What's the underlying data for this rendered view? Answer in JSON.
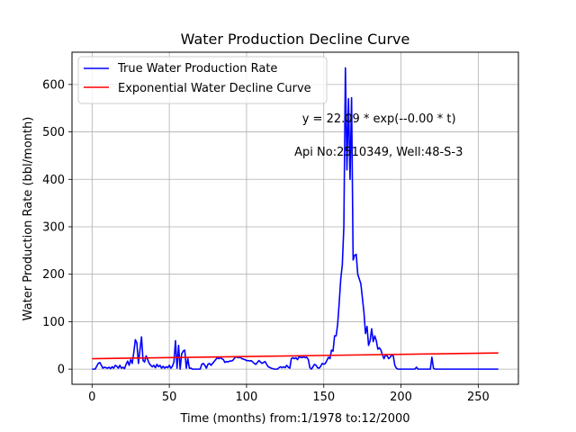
{
  "chart_data": {
    "type": "line",
    "title": "Water Production Decline Curve",
    "xlabel": "Time (months) from:1/1978 to:12/2000",
    "ylabel": "Water Production Rate (bbl/month)",
    "xlim": [
      -13,
      276
    ],
    "ylim": [
      -32,
      668
    ],
    "xticks": [
      0,
      50,
      100,
      150,
      200,
      250
    ],
    "yticks": [
      0,
      100,
      200,
      300,
      400,
      500,
      600
    ],
    "grid": true,
    "legend_position": "top-left",
    "annotations": [
      {
        "text": "y = 22.09 * exp(--0.00 * t)",
        "x": 136,
        "y": 520
      },
      {
        "text": "Api No:2510349, Well:48-S-3",
        "x": 131,
        "y": 450
      }
    ],
    "series": [
      {
        "name": "True Water Production Rate",
        "color": "#0000ff",
        "points": [
          [
            0,
            0
          ],
          [
            2,
            0
          ],
          [
            4,
            12
          ],
          [
            5,
            14
          ],
          [
            6,
            8
          ],
          [
            7,
            2
          ],
          [
            8,
            4
          ],
          [
            9,
            3
          ],
          [
            10,
            2
          ],
          [
            11,
            4
          ],
          [
            12,
            1
          ],
          [
            13,
            5
          ],
          [
            14,
            2
          ],
          [
            15,
            8
          ],
          [
            16,
            6
          ],
          [
            17,
            2
          ],
          [
            18,
            8
          ],
          [
            19,
            2
          ],
          [
            20,
            4
          ],
          [
            21,
            1
          ],
          [
            22,
            10
          ],
          [
            23,
            17
          ],
          [
            24,
            8
          ],
          [
            25,
            20
          ],
          [
            26,
            12
          ],
          [
            27,
            35
          ],
          [
            28,
            62
          ],
          [
            29,
            55
          ],
          [
            30,
            12
          ],
          [
            31,
            40
          ],
          [
            32,
            68
          ],
          [
            33,
            18
          ],
          [
            34,
            15
          ],
          [
            35,
            28
          ],
          [
            36,
            20
          ],
          [
            37,
            12
          ],
          [
            38,
            8
          ],
          [
            39,
            5
          ],
          [
            40,
            8
          ],
          [
            41,
            3
          ],
          [
            42,
            10
          ],
          [
            43,
            5
          ],
          [
            44,
            8
          ],
          [
            45,
            2
          ],
          [
            46,
            6
          ],
          [
            47,
            2
          ],
          [
            48,
            5
          ],
          [
            49,
            3
          ],
          [
            50,
            8
          ],
          [
            51,
            2
          ],
          [
            52,
            6
          ],
          [
            53,
            15
          ],
          [
            54,
            60
          ],
          [
            55,
            2
          ],
          [
            56,
            50
          ],
          [
            57,
            0
          ],
          [
            58,
            32
          ],
          [
            59,
            38
          ],
          [
            60,
            40
          ],
          [
            61,
            2
          ],
          [
            62,
            22
          ],
          [
            63,
            2
          ],
          [
            64,
            2
          ],
          [
            65,
            0
          ],
          [
            70,
            0
          ],
          [
            71,
            10
          ],
          [
            72,
            12
          ],
          [
            73,
            8
          ],
          [
            74,
            2
          ],
          [
            75,
            10
          ],
          [
            76,
            12
          ],
          [
            77,
            8
          ],
          [
            78,
            12
          ],
          [
            80,
            20
          ],
          [
            81,
            24
          ],
          [
            82,
            22
          ],
          [
            83,
            24
          ],
          [
            84,
            22
          ],
          [
            85,
            20
          ],
          [
            86,
            14
          ],
          [
            87,
            16
          ],
          [
            88,
            15
          ],
          [
            89,
            17
          ],
          [
            90,
            17
          ],
          [
            91,
            18
          ],
          [
            92,
            22
          ],
          [
            93,
            26
          ],
          [
            94,
            25
          ],
          [
            95,
            24
          ],
          [
            96,
            25
          ],
          [
            97,
            22
          ],
          [
            98,
            21
          ],
          [
            99,
            20
          ],
          [
            100,
            18
          ],
          [
            101,
            18
          ],
          [
            102,
            17
          ],
          [
            103,
            18
          ],
          [
            104,
            15
          ],
          [
            105,
            12
          ],
          [
            106,
            10
          ],
          [
            107,
            14
          ],
          [
            108,
            18
          ],
          [
            109,
            15
          ],
          [
            110,
            12
          ],
          [
            112,
            16
          ],
          [
            113,
            10
          ],
          [
            114,
            5
          ],
          [
            116,
            2
          ],
          [
            118,
            0
          ],
          [
            120,
            0
          ],
          [
            121,
            3
          ],
          [
            122,
            5
          ],
          [
            123,
            3
          ],
          [
            124,
            5
          ],
          [
            125,
            3
          ],
          [
            126,
            8
          ],
          [
            127,
            4
          ],
          [
            128,
            2
          ],
          [
            129,
            22
          ],
          [
            130,
            24
          ],
          [
            131,
            22
          ],
          [
            132,
            24
          ],
          [
            133,
            20
          ],
          [
            134,
            26
          ],
          [
            135,
            25
          ],
          [
            136,
            24
          ],
          [
            137,
            26
          ],
          [
            138,
            24
          ],
          [
            139,
            25
          ],
          [
            140,
            20
          ],
          [
            141,
            3
          ],
          [
            142,
            0
          ],
          [
            143,
            5
          ],
          [
            144,
            10
          ],
          [
            145,
            8
          ],
          [
            146,
            3
          ],
          [
            147,
            2
          ],
          [
            148,
            6
          ],
          [
            149,
            12
          ],
          [
            150,
            10
          ],
          [
            151,
            12
          ],
          [
            152,
            18
          ],
          [
            153,
            25
          ],
          [
            154,
            22
          ],
          [
            155,
            40
          ],
          [
            156,
            38
          ],
          [
            157,
            70
          ],
          [
            158,
            70
          ],
          [
            159,
            95
          ],
          [
            160,
            140
          ],
          [
            161,
            190
          ],
          [
            162,
            220
          ],
          [
            163,
            300
          ],
          [
            164,
            635
          ],
          [
            165,
            420
          ],
          [
            166,
            570
          ],
          [
            167,
            400
          ],
          [
            168,
            572
          ],
          [
            169,
            230
          ],
          [
            170,
            240
          ],
          [
            171,
            242
          ],
          [
            172,
            200
          ],
          [
            173,
            190
          ],
          [
            174,
            180
          ],
          [
            175,
            150
          ],
          [
            176,
            120
          ],
          [
            177,
            75
          ],
          [
            178,
            90
          ],
          [
            179,
            50
          ],
          [
            180,
            60
          ],
          [
            181,
            85
          ],
          [
            182,
            58
          ],
          [
            183,
            70
          ],
          [
            184,
            60
          ],
          [
            185,
            42
          ],
          [
            186,
            45
          ],
          [
            187,
            40
          ],
          [
            188,
            30
          ],
          [
            189,
            22
          ],
          [
            190,
            30
          ],
          [
            191,
            28
          ],
          [
            192,
            22
          ],
          [
            193,
            25
          ],
          [
            194,
            30
          ],
          [
            195,
            28
          ],
          [
            196,
            8
          ],
          [
            197,
            2
          ],
          [
            198,
            0
          ],
          [
            205,
            0
          ],
          [
            209,
            0
          ],
          [
            210,
            4
          ],
          [
            211,
            0
          ],
          [
            219,
            0
          ],
          [
            220,
            25
          ],
          [
            221,
            2
          ],
          [
            222,
            0
          ],
          [
            263,
            0
          ]
        ]
      },
      {
        "name": "Exponential Water Decline Curve",
        "color": "#ff0000",
        "points": [
          [
            0,
            22
          ],
          [
            263,
            34
          ]
        ]
      }
    ]
  }
}
